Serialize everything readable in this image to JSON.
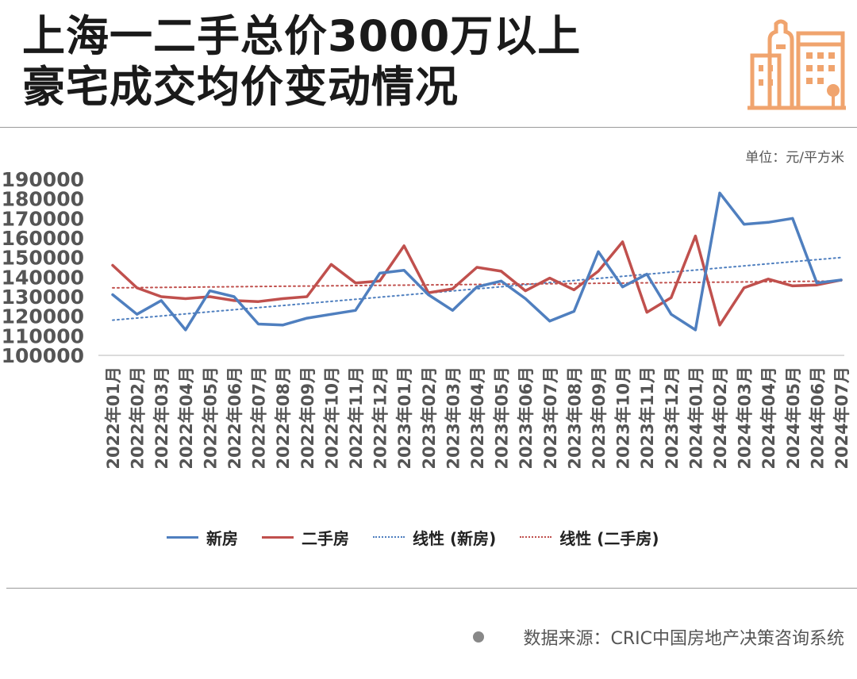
{
  "header": {
    "title_line1": "上海一二手总价3000万以上",
    "title_line2": "豪宅成交均价变动情况",
    "logo_icon": "city-buildings-icon",
    "logo_color": "#f0a46e"
  },
  "unit_label": "单位：元/平方米",
  "footer": {
    "source": "数据来源：CRIC中国房地产决策咨询系统",
    "bullet_icon": "circle-bullet-icon"
  },
  "colors": {
    "new": "#4f7fbf",
    "second": "#c0504d",
    "axis": "#cfcfcf",
    "tick_text": "#555555"
  },
  "chart_data": {
    "type": "line",
    "categories": [
      "2022年01月",
      "2022年02月",
      "2022年03月",
      "2022年04月",
      "2022年05月",
      "2022年06月",
      "2022年07月",
      "2022年08月",
      "2022年09月",
      "2022年10月",
      "2022年11月",
      "2022年12月",
      "2023年01月",
      "2023年02月",
      "2023年03月",
      "2023年04月",
      "2023年05月",
      "2023年06月",
      "2023年07月",
      "2023年08月",
      "2023年09月",
      "2023年10月",
      "2023年11月",
      "2023年12月",
      "2024年01月",
      "2024年02月",
      "2024年03月",
      "2024年04月",
      "2024年05月",
      "2024年06月",
      "2024年07月"
    ],
    "y_ticks": [
      "100000",
      "110000",
      "120000",
      "130000",
      "140000",
      "150000",
      "160000",
      "170000",
      "180000",
      "190000"
    ],
    "ylim": [
      100000,
      190000
    ],
    "series": [
      {
        "name": "新房",
        "style": "solid",
        "values": [
          131000,
          121000,
          128000,
          113000,
          133000,
          130000,
          116000,
          115500,
          119000,
          121000,
          123000,
          142000,
          143500,
          131000,
          123000,
          135000,
          138000,
          129000,
          117500,
          122500,
          153000,
          135000,
          141500,
          121000,
          113000,
          183000,
          167000,
          168000,
          170000,
          137000,
          138500
        ]
      },
      {
        "name": "二手房",
        "style": "solid",
        "values": [
          146000,
          134500,
          130000,
          129000,
          130000,
          128000,
          127500,
          129000,
          130000,
          146500,
          137000,
          138000,
          156000,
          132000,
          134000,
          145000,
          143000,
          133000,
          139500,
          133500,
          143000,
          158000,
          122000,
          129500,
          161000,
          115500,
          134500,
          139000,
          135500,
          136000,
          138500
        ]
      },
      {
        "name": "线性 (新房)",
        "style": "dotted",
        "trend": [
          118000,
          150000
        ]
      },
      {
        "name": "线性 (二手房)",
        "style": "dotted",
        "trend": [
          134500,
          138000
        ]
      }
    ],
    "grid": false,
    "legend_position": "bottom"
  }
}
